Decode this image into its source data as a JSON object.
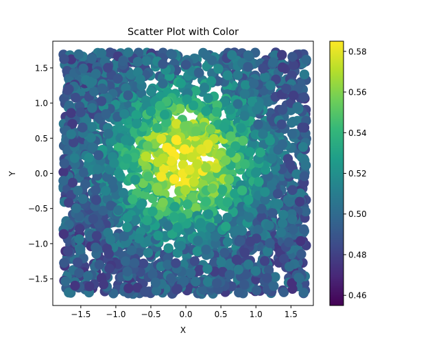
{
  "chart_data": {
    "type": "scatter",
    "title": "Scatter Plot with Color",
    "xlabel": "X",
    "ylabel": "Y",
    "xlim": [
      -1.9,
      1.82
    ],
    "ylim": [
      -1.88,
      1.88
    ],
    "x_ticks": [
      -1.5,
      -1.0,
      -0.5,
      0.0,
      0.5,
      1.0,
      1.5
    ],
    "x_tick_labels": [
      "−1.5",
      "−1.0",
      "−0.5",
      "0.0",
      "0.5",
      "1.0",
      "1.5"
    ],
    "y_ticks": [
      -1.5,
      -1.0,
      -0.5,
      0.0,
      0.5,
      1.0,
      1.5
    ],
    "y_tick_labels": [
      "−1.5",
      "−1.0",
      "−0.5",
      "0.0",
      "0.5",
      "1.0",
      "1.5"
    ],
    "grid": false,
    "colormap": "viridis",
    "colorbar": {
      "range": [
        0.455,
        0.585
      ],
      "ticks": [
        0.46,
        0.48,
        0.5,
        0.52,
        0.54,
        0.56,
        0.58
      ],
      "tick_labels": [
        "0.46",
        "0.48",
        "0.50",
        "0.52",
        "0.54",
        "0.56",
        "0.58"
      ]
    },
    "points": {
      "x_range": [
        -1.75,
        1.72
      ],
      "y_range": [
        -1.72,
        1.72
      ],
      "value_center": [
        0.0,
        0.2
      ],
      "value_at_center": 0.585,
      "value_at_edges": 0.49
    }
  }
}
